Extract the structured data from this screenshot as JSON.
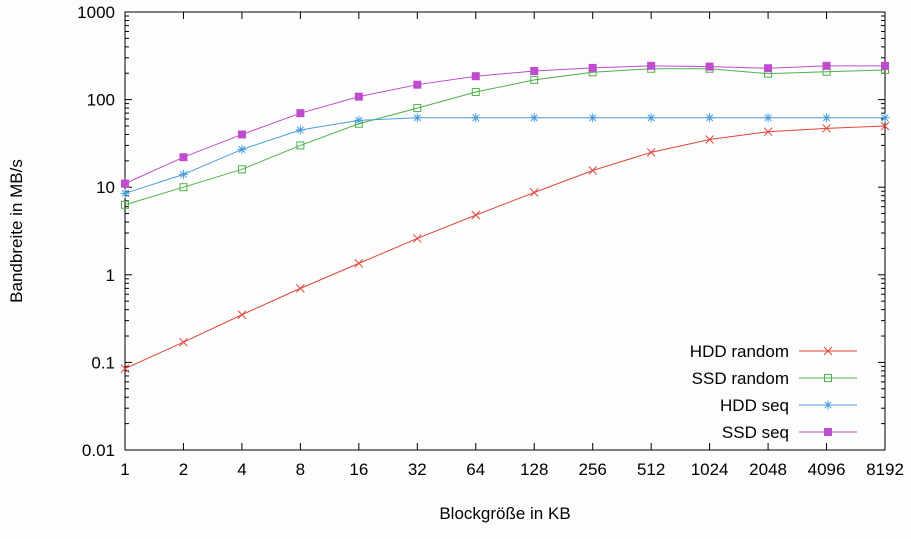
{
  "chart_data": {
    "type": "line",
    "title": "",
    "xlabel": "Blockgröße in KB",
    "ylabel": "Bandbreite in MB/s",
    "xscale": "log2",
    "yscale": "log10",
    "ylim": [
      0.01,
      1000
    ],
    "grid": false,
    "legend_position": "bottom-right-inside",
    "x": [
      1,
      2,
      4,
      8,
      16,
      32,
      64,
      128,
      256,
      512,
      1024,
      2048,
      4096,
      8192
    ],
    "xtick_labels": [
      "1",
      "2",
      "4",
      "8",
      "16",
      "32",
      "64",
      "128",
      "256",
      "512",
      "1024",
      "2048",
      "4096",
      "8192"
    ],
    "yticks": [
      0.01,
      0.1,
      1,
      10,
      100,
      1000
    ],
    "ytick_labels": [
      "0.01",
      "0.1",
      "1",
      "10",
      "100",
      "1000"
    ],
    "series": [
      {
        "name": "HDD random",
        "color": "#e0453a",
        "marker": "x",
        "values": [
          0.085,
          0.17,
          0.35,
          0.7,
          1.35,
          2.6,
          4.8,
          8.7,
          15.5,
          25,
          35,
          43,
          47,
          50
        ]
      },
      {
        "name": "SSD random",
        "color": "#4fb04c",
        "marker": "open-square",
        "values": [
          6.3,
          10,
          16,
          30,
          53,
          80,
          122,
          168,
          205,
          225,
          225,
          198,
          208,
          218
        ]
      },
      {
        "name": "HDD seq",
        "color": "#4a9ede",
        "marker": "asterisk",
        "values": [
          8.5,
          14,
          27,
          45,
          58,
          62,
          62,
          62,
          62,
          62,
          62,
          62,
          62,
          62
        ]
      },
      {
        "name": "SSD seq",
        "color": "#bf4ccc",
        "marker": "filled-square",
        "values": [
          11,
          22,
          40,
          70,
          108,
          148,
          185,
          212,
          230,
          243,
          238,
          228,
          243,
          243
        ]
      }
    ]
  }
}
